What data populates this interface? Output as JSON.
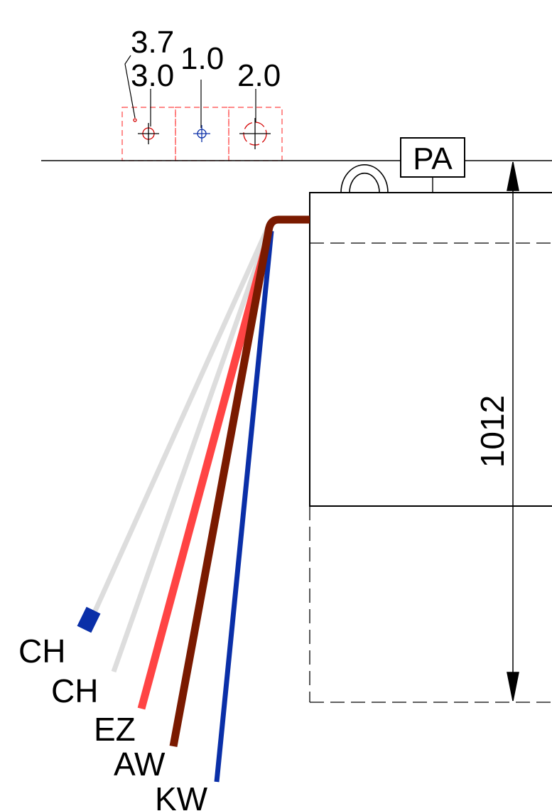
{
  "hole_dims": {
    "top_small": "3.7",
    "small": "3.0",
    "medium": "1.0",
    "large": "2.0"
  },
  "tag": "PA",
  "height_dim": "1012",
  "wires": [
    {
      "label": "CH",
      "color": "#dddddd",
      "tip_color": "#0a2fa8"
    },
    {
      "label": "CH",
      "color": "#dddddd"
    },
    {
      "label": "EZ",
      "color": "#ff4444"
    },
    {
      "label": "AW",
      "color": "#7a1a00"
    },
    {
      "label": "KW",
      "color": "#0a2fa8"
    }
  ],
  "colors": {
    "line": "#000000",
    "hidden": "#000000",
    "hole_frame": "#ff4444",
    "hole_blue": "#0a2fa8",
    "hole_red": "#d40000"
  }
}
